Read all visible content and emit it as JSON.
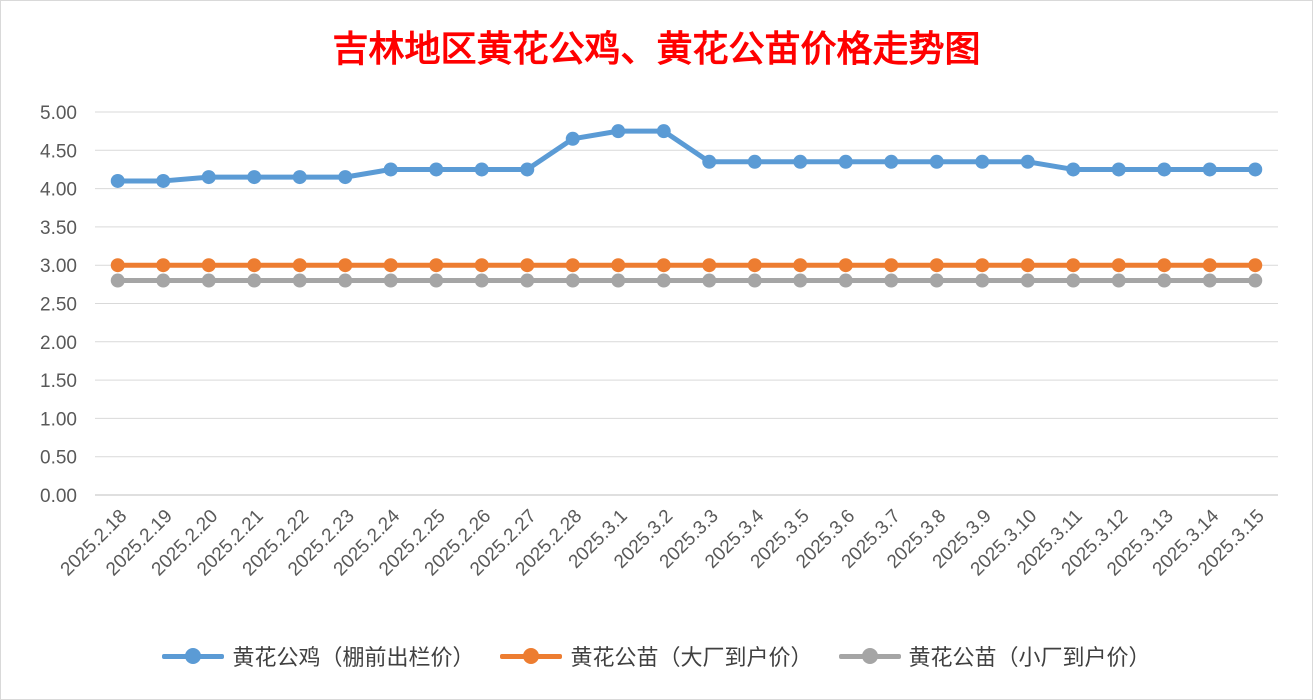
{
  "chart_data": {
    "type": "line",
    "title": "吉林地区黄花公鸡、黄花公苗价格走势图",
    "xlabel": "",
    "ylabel": "",
    "ylim": [
      0,
      5
    ],
    "ytick_step": 0.5,
    "ytick_labels": [
      "0.00",
      "0.50",
      "1.00",
      "1.50",
      "2.00",
      "2.50",
      "3.00",
      "3.50",
      "4.00",
      "4.50",
      "5.00"
    ],
    "grid": true,
    "legend_position": "bottom",
    "categories": [
      "2025.2.18",
      "2025.2.19",
      "2025.2.20",
      "2025.2.21",
      "2025.2.22",
      "2025.2.23",
      "2025.2.24",
      "2025.2.25",
      "2025.2.26",
      "2025.2.27",
      "2025.2.28",
      "2025.3.1",
      "2025.3.2",
      "2025.3.3",
      "2025.3.4",
      "2025.3.5",
      "2025.3.6",
      "2025.3.7",
      "2025.3.8",
      "2025.3.9",
      "2025.3.10",
      "2025.3.11",
      "2025.3.12",
      "2025.3.13",
      "2025.3.14",
      "2025.3.15"
    ],
    "series": [
      {
        "name": "黄花公鸡（棚前出栏价）",
        "color": "#5b9bd5",
        "values": [
          4.1,
          4.1,
          4.15,
          4.15,
          4.15,
          4.15,
          4.25,
          4.25,
          4.25,
          4.25,
          4.65,
          4.75,
          4.75,
          4.35,
          4.35,
          4.35,
          4.35,
          4.35,
          4.35,
          4.35,
          4.35,
          4.25,
          4.25,
          4.25,
          4.25,
          4.25
        ]
      },
      {
        "name": "黄花公苗（大厂到户价）",
        "color": "#ed7d31",
        "values": [
          3,
          3,
          3,
          3,
          3,
          3,
          3,
          3,
          3,
          3,
          3,
          3,
          3,
          3,
          3,
          3,
          3,
          3,
          3,
          3,
          3,
          3,
          3,
          3,
          3,
          3
        ]
      },
      {
        "name": "黄花公苗（小厂到户价）",
        "color": "#a5a5a5",
        "values": [
          2.8,
          2.8,
          2.8,
          2.8,
          2.8,
          2.8,
          2.8,
          2.8,
          2.8,
          2.8,
          2.8,
          2.8,
          2.8,
          2.8,
          2.8,
          2.8,
          2.8,
          2.8,
          2.8,
          2.8,
          2.8,
          2.8,
          2.8,
          2.8,
          2.8,
          2.8
        ]
      }
    ]
  }
}
